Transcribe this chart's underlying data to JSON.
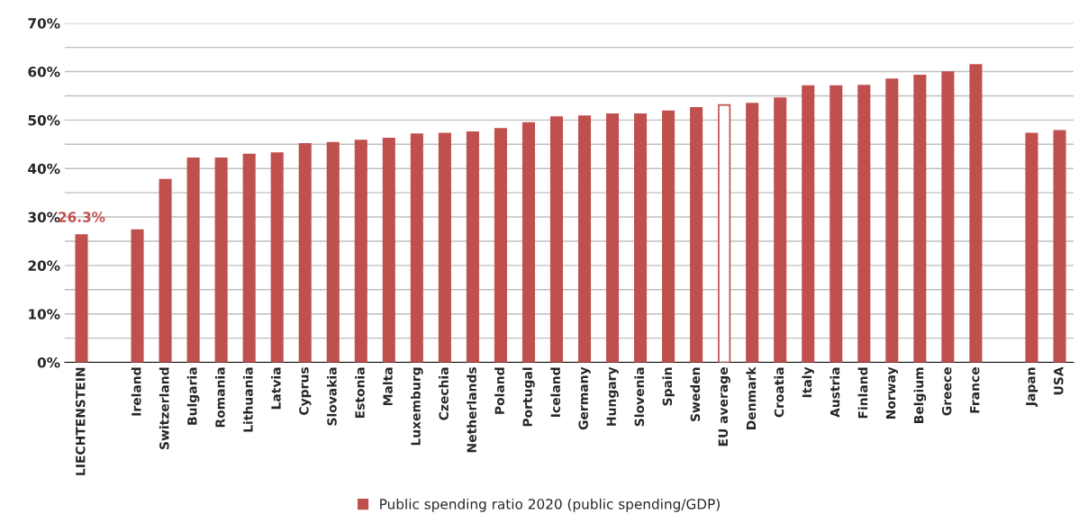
{
  "chart_data": {
    "type": "bar",
    "categories": [
      "LIECHTENSTEIN",
      null,
      "Ireland",
      "Switzerland",
      "Bulgaria",
      "Romania",
      "Lithuania",
      "Latvia",
      "Cyprus",
      "Slovakia",
      "Estonia",
      "Malta",
      "Luxemburg",
      "Czechia",
      "Netherlands",
      "Poland",
      "Portugal",
      "Iceland",
      "Germany",
      "Hungary",
      "Slovenia",
      "Spain",
      "Sweden",
      "EU average",
      "Denmark",
      "Croatia",
      "Italy",
      "Austria",
      "Finland",
      "Norway",
      "Belgium",
      "Greece",
      "France",
      null,
      "Japan",
      "USA"
    ],
    "series": [
      {
        "name": "Public spending ratio 2020 (public spending/GDP)",
        "color": "#c0504d",
        "values": [
          26.3,
          null,
          27.3,
          37.7,
          42.1,
          42.1,
          42.9,
          43.2,
          45.1,
          45.3,
          45.8,
          46.2,
          47.1,
          47.2,
          47.5,
          48.2,
          49.4,
          50.6,
          50.8,
          51.2,
          51.2,
          51.8,
          52.5,
          53.1,
          53.4,
          54.5,
          57.0,
          57.0,
          57.1,
          58.4,
          59.2,
          59.9,
          61.4,
          null,
          47.2,
          47.8
        ],
        "colors": [
          "#c0504d",
          null,
          "#c0504d",
          "#c0504d",
          "#c0504d",
          "#c0504d",
          "#c0504d",
          "#c0504d",
          "#c0504d",
          "#c0504d",
          "#c0504d",
          "#c0504d",
          "#c0504d",
          "#c0504d",
          "#c0504d",
          "#c0504d",
          "#c0504d",
          "#c0504d",
          "#c0504d",
          "#c0504d",
          "#c0504d",
          "#c0504d",
          "#c0504d",
          "#ffffff",
          "#c0504d",
          "#c0504d",
          "#c0504d",
          "#c0504d",
          "#c0504d",
          "#c0504d",
          "#c0504d",
          "#c0504d",
          "#c0504d",
          null,
          "#c0504d",
          "#c0504d"
        ],
        "value_labels": [
          "26.3%",
          null,
          null,
          null,
          null,
          null,
          null,
          null,
          null,
          null,
          null,
          null,
          null,
          null,
          null,
          null,
          null,
          null,
          null,
          null,
          null,
          null,
          null,
          null,
          null,
          null,
          null,
          null,
          null,
          null,
          null,
          null,
          null,
          null,
          null,
          null
        ]
      }
    ],
    "ylim": [
      0,
      70
    ],
    "yticks": [
      {
        "value": 0,
        "label": "0%"
      },
      {
        "value": 5,
        "label": null
      },
      {
        "value": 10,
        "label": "10%"
      },
      {
        "value": 15,
        "label": null
      },
      {
        "value": 20,
        "label": "20%"
      },
      {
        "value": 25,
        "label": null
      },
      {
        "value": 30,
        "label": "30%"
      },
      {
        "value": 35,
        "label": null
      },
      {
        "value": 40,
        "label": "40%"
      },
      {
        "value": 45,
        "label": null
      },
      {
        "value": 50,
        "label": "50%"
      },
      {
        "value": 55,
        "label": null
      },
      {
        "value": 60,
        "label": "60%"
      },
      {
        "value": 65,
        "label": null
      },
      {
        "value": 70,
        "label": "70%"
      }
    ],
    "grid": "y",
    "legend": "bottom"
  }
}
